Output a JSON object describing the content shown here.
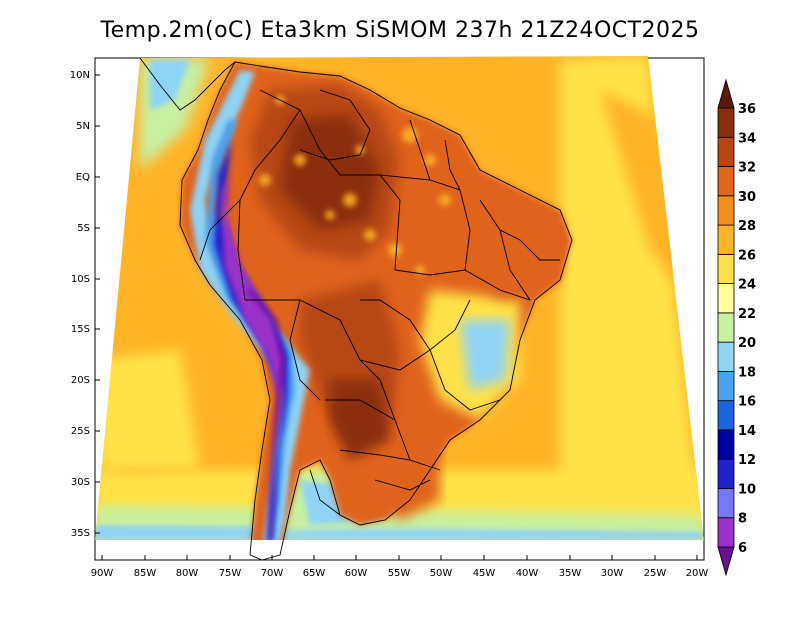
{
  "title": "Temp.2m(oC) Eta3km SiSMOM 237h 21Z24OCT2025",
  "axes": {
    "lat_labels": [
      "10N",
      "5N",
      "EQ",
      "5S",
      "10S",
      "15S",
      "20S",
      "25S",
      "30S",
      "35S"
    ],
    "lon_labels": [
      "90W",
      "85W",
      "80W",
      "75W",
      "70W",
      "65W",
      "60W",
      "55W",
      "50W",
      "45W",
      "40W",
      "35W",
      "30W",
      "25W",
      "20W"
    ]
  },
  "colorbar": {
    "labels": [
      "6",
      "8",
      "10",
      "12",
      "14",
      "16",
      "18",
      "20",
      "22",
      "24",
      "26",
      "28",
      "30",
      "32",
      "34",
      "36"
    ],
    "colors": [
      "#6a0f8f",
      "#9b32c8",
      "#7777ff",
      "#2222cc",
      "#0000a0",
      "#1e64dc",
      "#4aa3f0",
      "#8fd3f5",
      "#c8f0a0",
      "#ffffa0",
      "#ffe24a",
      "#ffb428",
      "#f58c1e",
      "#e0641c",
      "#b84614",
      "#8a2d0f",
      "#5a1a0a"
    ]
  }
}
